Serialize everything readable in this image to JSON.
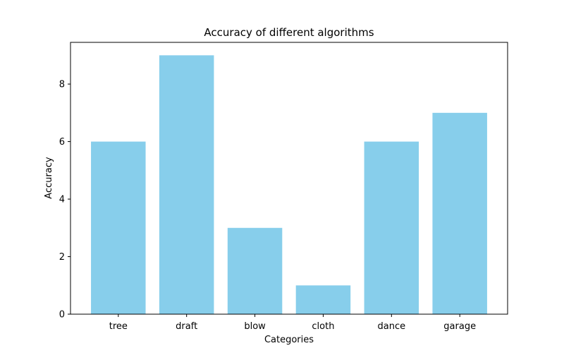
{
  "chart_data": {
    "type": "bar",
    "title": "Accuracy of different algorithms",
    "xlabel": "Categories",
    "ylabel": "Accuracy",
    "categories": [
      "tree",
      "draft",
      "blow",
      "cloth",
      "dance",
      "garage"
    ],
    "values": [
      6,
      9,
      3,
      1,
      6,
      7
    ],
    "ylim": [
      0,
      9.45
    ],
    "yticks": [
      0,
      2,
      4,
      6,
      8
    ],
    "grid": false,
    "legend": "none",
    "bar_color": "#87ceeb",
    "axis_color": "#000000"
  }
}
